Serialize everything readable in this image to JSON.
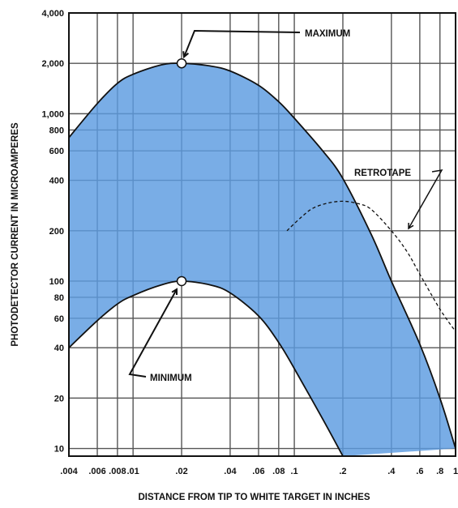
{
  "chart_data": {
    "type": "area",
    "title": "",
    "xlabel": "DISTANCE FROM TIP TO WHITE TARGET IN INCHES",
    "ylabel": "PHOTODETECTOR CURRENT IN MICROAMPERES",
    "x_scale": "log",
    "y_scale": "log",
    "xlim": [
      0.004,
      1
    ],
    "ylim": [
      9,
      4000
    ],
    "x_ticks": [
      0.004,
      0.006,
      0.008,
      0.01,
      0.02,
      0.04,
      0.06,
      0.08,
      0.1,
      0.2,
      0.4,
      0.6,
      0.8,
      1
    ],
    "x_tick_labels": [
      ".004",
      ".006",
      ".008",
      ".01",
      ".02",
      ".04",
      ".06",
      ".08",
      ".1",
      ".2",
      ".4",
      ".6",
      ".8",
      "1"
    ],
    "y_ticks": [
      10,
      20,
      40,
      60,
      80,
      100,
      200,
      400,
      600,
      800,
      1000,
      2000,
      4000
    ],
    "y_tick_labels": [
      "10",
      "20",
      "40",
      "60",
      "80",
      "100",
      "200",
      "400",
      "600",
      "800",
      "1,000",
      "2,000",
      "4,000"
    ],
    "grid": true,
    "fill_color": "#5b9be0",
    "series": [
      {
        "label": "MAXIMUM",
        "role": "upper-bound",
        "x": [
          0.004,
          0.006,
          0.008,
          0.01,
          0.015,
          0.02,
          0.03,
          0.04,
          0.06,
          0.08,
          0.1,
          0.15,
          0.2,
          0.3,
          0.4,
          0.6,
          0.8,
          1
        ],
        "y": [
          720,
          1150,
          1520,
          1720,
          1960,
          2000,
          1930,
          1800,
          1480,
          1180,
          940,
          600,
          410,
          190,
          100,
          42,
          20,
          10
        ]
      },
      {
        "label": "MINIMUM",
        "role": "lower-bound",
        "x": [
          0.004,
          0.006,
          0.008,
          0.01,
          0.015,
          0.02,
          0.03,
          0.04,
          0.06,
          0.08,
          0.1,
          0.15,
          0.2
        ],
        "y": [
          40,
          58,
          73,
          82,
          95,
          100,
          95,
          85,
          62,
          43,
          30,
          15,
          9
        ]
      },
      {
        "label": "RETROTAPE",
        "role": "dashed",
        "x": [
          0.09,
          0.11,
          0.13,
          0.16,
          0.2,
          0.25,
          0.3,
          0.4,
          0.5,
          0.6,
          0.8,
          1
        ],
        "y": [
          200,
          240,
          272,
          292,
          300,
          290,
          268,
          200,
          150,
          110,
          68,
          50
        ]
      }
    ],
    "markers": [
      {
        "label": "MAXIMUM",
        "x": 0.02,
        "y": 2000
      },
      {
        "label": "MINIMUM",
        "x": 0.02,
        "y": 100
      }
    ]
  }
}
